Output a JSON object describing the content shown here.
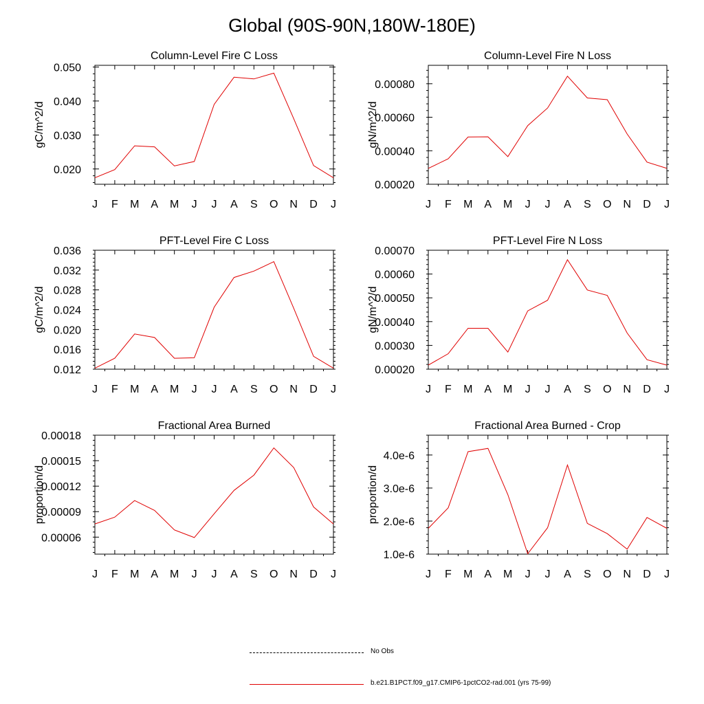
{
  "figure_title": "Global (90S-90N,180W-180E)",
  "legend": {
    "obs_label": "No Obs",
    "model_label": "b.e21.B1PCT.f09_g17.CMIP6-1pctCO2-rad.001 (yrs 75-99)",
    "model_color": "#e00000"
  },
  "chart_data": [
    {
      "type": "line",
      "title": "Column-Level Fire C Loss",
      "ylabel": "gC/m^2/d",
      "xlabel": "",
      "categories": [
        "J",
        "F",
        "M",
        "A",
        "M",
        "J",
        "J",
        "A",
        "S",
        "O",
        "N",
        "D",
        "J"
      ],
      "ylim": [
        0.0155,
        0.0505
      ],
      "yticks": [
        0.02,
        0.03,
        0.04,
        0.05
      ],
      "ytick_labels": [
        "0.020",
        "0.030",
        "0.040",
        "0.050"
      ],
      "series": [
        {
          "values": [
            0.0174,
            0.0198,
            0.0268,
            0.0265,
            0.0209,
            0.0222,
            0.039,
            0.047,
            0.0465,
            0.0482,
            0.0348,
            0.021,
            0.0174
          ]
        }
      ]
    },
    {
      "type": "line",
      "title": "Column-Level Fire N Loss",
      "ylabel": "gN/m^2/d",
      "xlabel": "",
      "categories": [
        "J",
        "F",
        "M",
        "A",
        "M",
        "J",
        "J",
        "A",
        "S",
        "O",
        "N",
        "D",
        "J"
      ],
      "ylim": [
        0.0002,
        0.00091
      ],
      "yticks": [
        0.0002,
        0.0004,
        0.0006,
        0.0008
      ],
      "ytick_labels": [
        "0.00020",
        "0.00040",
        "0.00060",
        "0.00080"
      ],
      "series": [
        {
          "values": [
            0.000295,
            0.000352,
            0.000482,
            0.000483,
            0.000365,
            0.00055,
            0.000655,
            0.000845,
            0.000715,
            0.000705,
            0.0005,
            0.000332,
            0.000295
          ]
        }
      ]
    },
    {
      "type": "line",
      "title": "PFT-Level Fire C Loss",
      "ylabel": "gC/m^2/d",
      "xlabel": "",
      "categories": [
        "J",
        "F",
        "M",
        "A",
        "M",
        "J",
        "J",
        "A",
        "S",
        "O",
        "N",
        "D",
        "J"
      ],
      "ylim": [
        0.012,
        0.036
      ],
      "yticks": [
        0.012,
        0.016,
        0.02,
        0.024,
        0.028,
        0.032,
        0.036
      ],
      "ytick_labels": [
        "0.012",
        "0.016",
        "0.020",
        "0.024",
        "0.028",
        "0.032",
        "0.036"
      ],
      "series": [
        {
          "values": [
            0.0122,
            0.0142,
            0.0191,
            0.0184,
            0.0142,
            0.0143,
            0.0245,
            0.0305,
            0.0318,
            0.0337,
            0.0243,
            0.0146,
            0.0122
          ]
        }
      ]
    },
    {
      "type": "line",
      "title": "PFT-Level Fire N Loss",
      "ylabel": "gN/m^2/d",
      "xlabel": "",
      "categories": [
        "J",
        "F",
        "M",
        "A",
        "M",
        "J",
        "J",
        "A",
        "S",
        "O",
        "N",
        "D",
        "J"
      ],
      "ylim": [
        0.0002,
        0.0007
      ],
      "yticks": [
        0.0002,
        0.0003,
        0.0004,
        0.0005,
        0.0006,
        0.0007
      ],
      "ytick_labels": [
        "0.00020",
        "0.00030",
        "0.00040",
        "0.00050",
        "0.00060",
        "0.00070"
      ],
      "series": [
        {
          "values": [
            0.000217,
            0.000265,
            0.000372,
            0.000372,
            0.000272,
            0.000445,
            0.00049,
            0.00066,
            0.000533,
            0.00051,
            0.000352,
            0.00024,
            0.000217
          ]
        }
      ]
    },
    {
      "type": "line",
      "title": "Fractional Area Burned",
      "ylabel": "proportion/d",
      "xlabel": "",
      "categories": [
        "J",
        "F",
        "M",
        "A",
        "M",
        "J",
        "J",
        "A",
        "S",
        "O",
        "N",
        "D",
        "J"
      ],
      "ylim": [
        4e-05,
        0.00018
      ],
      "yticks": [
        6e-05,
        9e-05,
        0.00012,
        0.00015,
        0.00018
      ],
      "ytick_labels": [
        "0.00006",
        "0.00009",
        "0.00012",
        "0.00015",
        "0.00018"
      ],
      "series": [
        {
          "values": [
            7.55e-05,
            8.35e-05,
            0.000103,
            9.15e-05,
            6.85e-05,
            5.95e-05,
            8.75e-05,
            0.000115,
            0.000133,
            0.000165,
            0.000142,
            9.55e-05,
            7.55e-05
          ]
        }
      ]
    },
    {
      "type": "line",
      "title": "Fractional Area Burned - Crop",
      "ylabel": "proportion/d",
      "xlabel": "",
      "categories": [
        "J",
        "F",
        "M",
        "A",
        "M",
        "J",
        "J",
        "A",
        "S",
        "O",
        "N",
        "D",
        "J"
      ],
      "ylim": [
        1e-06,
        4.6e-06
      ],
      "yticks": [
        1e-06,
        2e-06,
        3e-06,
        4e-06
      ],
      "ytick_labels": [
        "1.0e-6",
        "2.0e-6",
        "3.0e-6",
        "4.0e-6"
      ],
      "series": [
        {
          "values": [
            1.78e-06,
            2.4e-06,
            4.1e-06,
            4.2e-06,
            2.8e-06,
            1.01e-06,
            1.8e-06,
            3.7e-06,
            1.93e-06,
            1.62e-06,
            1.15e-06,
            2.11e-06,
            1.78e-06
          ]
        }
      ]
    }
  ]
}
